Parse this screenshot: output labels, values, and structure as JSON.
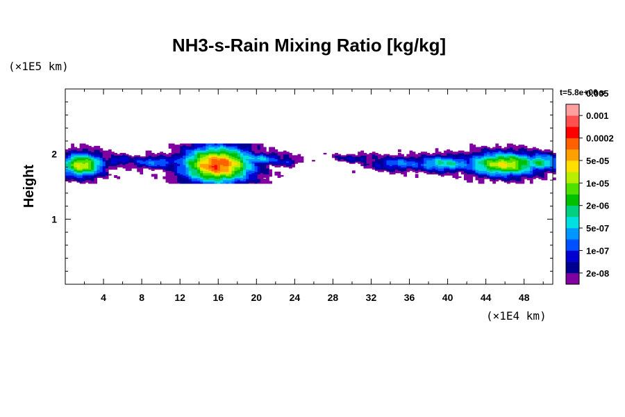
{
  "chart_data": {
    "type": "heatmap",
    "title": "NH3-s-Rain Mixing Ratio [kg/kg]",
    "xlabel": "",
    "x_unit_label": "(×1E4 km)",
    "ylabel": "Height",
    "y_unit_label": "(×1E5 km)",
    "time_label": "t=5.8e+06 s",
    "xlim": [
      0,
      51
    ],
    "ylim": [
      0,
      3
    ],
    "x_ticks": [
      4,
      8,
      12,
      16,
      20,
      24,
      28,
      32,
      36,
      40,
      44,
      48
    ],
    "x_tick_labels": [
      "4",
      "8",
      "12",
      "16",
      "20",
      "24",
      "28",
      "32",
      "36",
      "40",
      "44",
      "48"
    ],
    "y_ticks": [
      1,
      2
    ],
    "y_tick_labels": [
      "1",
      "2"
    ],
    "colorbar": {
      "colors": [
        "#8000a0",
        "#000090",
        "#0000d0",
        "#0050ff",
        "#0096ff",
        "#00e0e0",
        "#00d080",
        "#00c000",
        "#50e000",
        "#b8ee00",
        "#ffe000",
        "#ffa000",
        "#ff6000",
        "#ff0000",
        "#ff5050",
        "#ffa0a0"
      ],
      "labels": [
        "2e-08",
        "1e-07",
        "5e-07",
        "2e-06",
        "1e-05",
        "5e-05",
        "0.0002",
        "0.001",
        "0.005"
      ]
    },
    "field": {
      "description_levels": "level index 1..16 maps to colorbar.colors; 0 = no data",
      "blobs": [
        {
          "x": 1.6,
          "y": 1.83,
          "sx": 1.6,
          "sy": 0.13,
          "peak": 11
        },
        {
          "x": 5.5,
          "y": 1.9,
          "sx": 1.2,
          "sy": 0.06,
          "peak": 4
        },
        {
          "x": 9.5,
          "y": 1.87,
          "sx": 2.4,
          "sy": 0.07,
          "peak": 5
        },
        {
          "x": 15.8,
          "y": 1.83,
          "sx": 2.6,
          "sy": 0.2,
          "peak": 14
        },
        {
          "x": 19.8,
          "y": 1.92,
          "sx": 2.2,
          "sy": 0.07,
          "peak": 6
        },
        {
          "x": 23.0,
          "y": 1.88,
          "sx": 0.9,
          "sy": 0.05,
          "peak": 4
        },
        {
          "x": 30.5,
          "y": 1.93,
          "sx": 2.0,
          "sy": 0.05,
          "peak": 3
        },
        {
          "x": 35.0,
          "y": 1.85,
          "sx": 2.4,
          "sy": 0.08,
          "peak": 5
        },
        {
          "x": 39.5,
          "y": 1.85,
          "sx": 2.5,
          "sy": 0.09,
          "peak": 7
        },
        {
          "x": 45.8,
          "y": 1.84,
          "sx": 2.8,
          "sy": 0.13,
          "peak": 11
        },
        {
          "x": 49.5,
          "y": 1.87,
          "sx": 1.5,
          "sy": 0.1,
          "peak": 8
        }
      ]
    }
  }
}
